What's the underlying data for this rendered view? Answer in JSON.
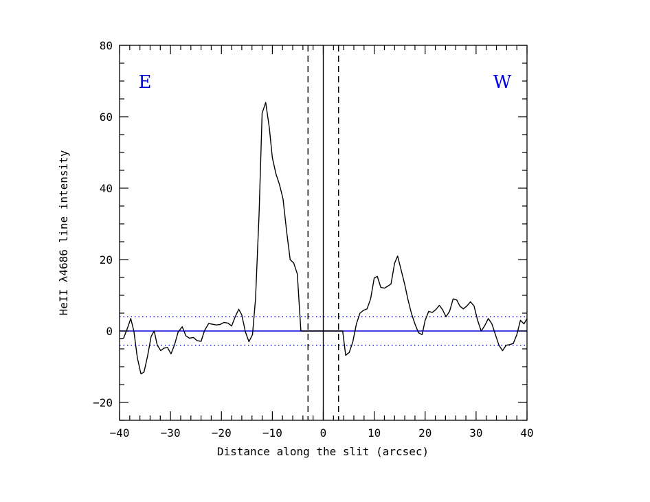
{
  "chart_data": {
    "type": "line",
    "title": "",
    "xlabel": "Distance along the slit (arcsec)",
    "ylabel": "HeII λ4686 line intensity",
    "xlim": [
      -40,
      40
    ],
    "ylim": [
      -25,
      80
    ],
    "xticks": [
      -40,
      -30,
      -20,
      -10,
      0,
      10,
      20,
      30,
      40
    ],
    "xtick_labels": [
      "−40",
      "−30",
      "−20",
      "−10",
      "0",
      "10",
      "20",
      "30",
      "40"
    ],
    "yticks": [
      -20,
      0,
      20,
      40,
      60,
      80
    ],
    "ytick_labels": [
      "−20",
      "0",
      "20",
      "40",
      "60",
      "80"
    ],
    "annotations": {
      "east": "E",
      "west": "W"
    },
    "colors": {
      "curve": "#000000",
      "reference": "#0000dd",
      "annotation": "#0000dd"
    },
    "reference_lines": {
      "zero": 0,
      "sigma_upper": 4,
      "sigma_lower": -4,
      "center": 0,
      "mask_left": -3.0,
      "mask_right": 3.0
    },
    "grid": false,
    "series": [
      {
        "x": [
          -40,
          -39.2,
          -38.4,
          -37.8,
          -37.2,
          -36.5,
          -35.8,
          -35.2,
          -34.5,
          -33.8,
          -33.2,
          -32.6,
          -31.9,
          -31.3,
          -30.6,
          -29.9,
          -29.2,
          -28.5,
          -27.7,
          -27.0,
          -26.3,
          -25.5,
          -24.8,
          -24.0,
          -23.3,
          -22.5,
          -21.8,
          -21.0,
          -20.3,
          -19.5,
          -18.7,
          -18.0,
          -17.3,
          -16.6,
          -16.0,
          -15.3,
          -14.6,
          -13.9,
          -13.3,
          -12.6,
          -12.0,
          -11.3,
          -10.6,
          -10.0,
          -9.3,
          -8.6,
          -7.9,
          -7.2,
          -6.5,
          -5.8,
          -5.1,
          -4.4,
          -3.8,
          -3.1,
          3.1,
          3.8,
          4.4,
          5.1,
          5.8,
          6.5,
          7.2,
          7.9,
          8.6,
          9.3,
          10.0,
          10.6,
          11.3,
          12.0,
          12.6,
          13.3,
          14.0,
          14.6,
          15.3,
          16.0,
          16.6,
          17.3,
          18.0,
          18.7,
          19.4,
          20.0,
          20.7,
          21.4,
          22.1,
          22.8,
          23.4,
          24.1,
          24.8,
          25.5,
          26.2,
          26.8,
          27.5,
          28.2,
          28.9,
          29.6,
          30.3,
          31.0,
          31.7,
          32.4,
          33.1,
          33.8,
          34.5,
          35.2,
          35.9,
          36.6,
          37.3,
          38.0,
          38.7,
          39.4,
          40.0
        ],
        "y": [
          -2.2,
          -2.0,
          1.0,
          3.5,
          0.0,
          -7.5,
          -12.0,
          -11.5,
          -7.0,
          -1.5,
          0.0,
          -4.0,
          -5.5,
          -4.8,
          -4.6,
          -6.4,
          -3.8,
          -0.3,
          1.2,
          -1.3,
          -2.0,
          -1.8,
          -2.7,
          -2.9,
          0.2,
          2.1,
          1.9,
          1.7,
          1.8,
          2.4,
          2.2,
          1.4,
          4.0,
          6.1,
          4.5,
          -0.2,
          -3.0,
          -1.0,
          9.0,
          33.0,
          61.0,
          64.0,
          57.0,
          48.5,
          44.0,
          41.0,
          37.0,
          28.0,
          20.0,
          19.0,
          16.0,
          0.0,
          0.0,
          0.0,
          0.0,
          0.0,
          -6.8,
          -6.0,
          -3.0,
          2.0,
          5.0,
          5.8,
          6.2,
          9.0,
          14.8,
          15.3,
          12.2,
          12.0,
          12.5,
          13.2,
          19.0,
          21.0,
          17.0,
          13.0,
          9.0,
          5.0,
          2.0,
          -0.5,
          -1.0,
          3.0,
          5.5,
          5.2,
          6.0,
          7.2,
          6.0,
          4.0,
          5.5,
          9.0,
          8.7,
          7.0,
          6.2,
          7.0,
          8.2,
          7.0,
          3.0,
          0.0,
          1.5,
          3.5,
          2.0,
          -1.0,
          -4.0,
          -5.5,
          -4.0,
          -3.8,
          -3.5,
          -1.0,
          3.0,
          2.0,
          3.5
        ]
      }
    ]
  }
}
